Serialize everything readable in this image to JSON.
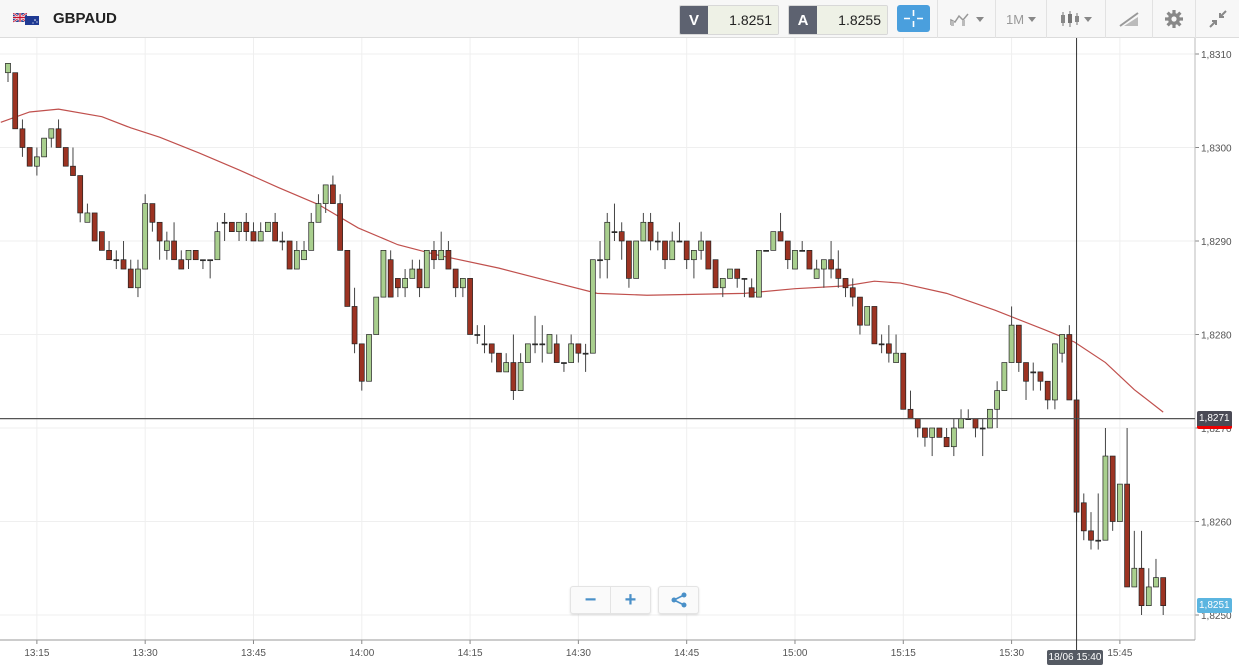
{
  "header": {
    "symbol": "GBPAUD",
    "flag_icon": "gb-au-flag-icon",
    "sell_label": "V",
    "sell_price": "1.8251",
    "buy_label": "A",
    "buy_price": "1.8255",
    "timeframe": "1M",
    "icons": [
      "crosshair-icon",
      "chart-type-icon",
      "timeframe-dropdown",
      "candlestick-icon",
      "drawing-tool-icon",
      "gear-icon",
      "collapse-icon"
    ]
  },
  "zoom_controls": {
    "zoom_out": "−",
    "zoom_in": "+",
    "share_icon": "share-icon"
  },
  "colors": {
    "up": "#a9cf8e",
    "down": "#9c3322",
    "ma": "#c0504d",
    "accent": "#4a9fdd",
    "price_tag": "#4a4a55",
    "bid_tag": "#5bb5e0"
  },
  "chart_data": {
    "type": "candlestick",
    "symbol": "GBPAUD",
    "interval": "1M",
    "start_time": "13:11",
    "ylim": [
      1.8245,
      1.8316
    ],
    "y_ticks": [
      1.825,
      1.826,
      1.827,
      1.828,
      1.829,
      1.83,
      1.831
    ],
    "y_tick_labels": [
      "1,8250",
      "1,8260",
      "1,8270",
      "1,8280",
      "1,8290",
      "1,8300",
      "1,8310"
    ],
    "x_tick_labels": [
      "13:15",
      "13:30",
      "13:45",
      "14:00",
      "14:15",
      "14:30",
      "14:45",
      "15:00",
      "15:15",
      "15:30",
      "15:45"
    ],
    "x_tick_minutes": [
      4,
      19,
      34,
      49,
      64,
      79,
      94,
      109,
      124,
      139,
      154
    ],
    "grid": true,
    "current_price": 1.8271,
    "current_price_label": "1,8271",
    "bid_price": 1.8251,
    "bid_label": "1,8251",
    "crosshair_index": 148,
    "crosshair_label": "18/06 15:40",
    "candles_ohlc": [
      [
        1.8308,
        1.8309,
        1.8307,
        1.8309
      ],
      [
        1.8308,
        1.8308,
        1.8302,
        1.8302
      ],
      [
        1.8302,
        1.8303,
        1.8299,
        1.83
      ],
      [
        1.83,
        1.83,
        1.8298,
        1.8298
      ],
      [
        1.8298,
        1.83,
        1.8297,
        1.8299
      ],
      [
        1.8299,
        1.8301,
        1.8299,
        1.8301
      ],
      [
        1.8301,
        1.8302,
        1.83,
        1.8302
      ],
      [
        1.8302,
        1.8303,
        1.83,
        1.83
      ],
      [
        1.83,
        1.83,
        1.8298,
        1.8298
      ],
      [
        1.8298,
        1.83,
        1.8297,
        1.8297
      ],
      [
        1.8297,
        1.8297,
        1.8292,
        1.8293
      ],
      [
        1.8292,
        1.8294,
        1.8292,
        1.8293
      ],
      [
        1.8293,
        1.8293,
        1.829,
        1.829
      ],
      [
        1.8291,
        1.8291,
        1.8289,
        1.8289
      ],
      [
        1.8289,
        1.829,
        1.8288,
        1.8288
      ],
      [
        1.8288,
        1.8289,
        1.8287,
        1.8288
      ],
      [
        1.8288,
        1.829,
        1.8287,
        1.8287
      ],
      [
        1.8287,
        1.8288,
        1.8285,
        1.8285
      ],
      [
        1.8285,
        1.8288,
        1.8284,
        1.8287
      ],
      [
        1.8287,
        1.8295,
        1.8287,
        1.8294
      ],
      [
        1.8294,
        1.8294,
        1.8291,
        1.8292
      ],
      [
        1.8292,
        1.8292,
        1.8288,
        1.829
      ],
      [
        1.8289,
        1.8291,
        1.8288,
        1.829
      ],
      [
        1.829,
        1.8292,
        1.8288,
        1.8288
      ],
      [
        1.8288,
        1.8289,
        1.8287,
        1.8287
      ],
      [
        1.8288,
        1.8289,
        1.8287,
        1.8289
      ],
      [
        1.8289,
        1.8289,
        1.8288,
        1.8288
      ],
      [
        1.8288,
        1.8288,
        1.8287,
        1.8288
      ],
      [
        1.8288,
        1.8288,
        1.8286,
        1.8288
      ],
      [
        1.8288,
        1.8292,
        1.8288,
        1.8291
      ],
      [
        1.8292,
        1.8293,
        1.829,
        1.8292
      ],
      [
        1.8292,
        1.8292,
        1.8291,
        1.8291
      ],
      [
        1.8291,
        1.8292,
        1.829,
        1.8292
      ],
      [
        1.8292,
        1.8293,
        1.829,
        1.8291
      ],
      [
        1.8291,
        1.8292,
        1.829,
        1.829
      ],
      [
        1.829,
        1.8292,
        1.829,
        1.8291
      ],
      [
        1.8291,
        1.8292,
        1.8291,
        1.8292
      ],
      [
        1.8292,
        1.8293,
        1.829,
        1.829
      ],
      [
        1.829,
        1.8291,
        1.8289,
        1.829
      ],
      [
        1.829,
        1.829,
        1.8287,
        1.8287
      ],
      [
        1.8287,
        1.829,
        1.8287,
        1.8289
      ],
      [
        1.8288,
        1.829,
        1.8288,
        1.8289
      ],
      [
        1.8289,
        1.8293,
        1.8289,
        1.8292
      ],
      [
        1.8292,
        1.8295,
        1.8292,
        1.8294
      ],
      [
        1.8294,
        1.8296,
        1.8293,
        1.8296
      ],
      [
        1.8296,
        1.8297,
        1.8294,
        1.8294
      ],
      [
        1.8294,
        1.8295,
        1.8289,
        1.8289
      ],
      [
        1.8289,
        1.8289,
        1.8283,
        1.8283
      ],
      [
        1.8283,
        1.8285,
        1.8278,
        1.8279
      ],
      [
        1.8279,
        1.8279,
        1.8274,
        1.8275
      ],
      [
        1.8275,
        1.828,
        1.8275,
        1.828
      ],
      [
        1.828,
        1.8284,
        1.828,
        1.8284
      ],
      [
        1.8284,
        1.8289,
        1.8284,
        1.8289
      ],
      [
        1.8288,
        1.8289,
        1.8284,
        1.8284
      ],
      [
        1.8286,
        1.8286,
        1.8284,
        1.8285
      ],
      [
        1.8285,
        1.8287,
        1.8284,
        1.8286
      ],
      [
        1.8286,
        1.8288,
        1.8286,
        1.8287
      ],
      [
        1.8287,
        1.8288,
        1.8284,
        1.8285
      ],
      [
        1.8285,
        1.8289,
        1.8285,
        1.8289
      ],
      [
        1.8289,
        1.829,
        1.8287,
        1.8288
      ],
      [
        1.8288,
        1.8291,
        1.8288,
        1.8289
      ],
      [
        1.8289,
        1.829,
        1.8287,
        1.8287
      ],
      [
        1.8287,
        1.8287,
        1.8284,
        1.8285
      ],
      [
        1.8285,
        1.8286,
        1.8284,
        1.8286
      ],
      [
        1.8286,
        1.8286,
        1.828,
        1.828
      ],
      [
        1.828,
        1.8281,
        1.8279,
        1.828
      ],
      [
        1.8279,
        1.8281,
        1.8278,
        1.8279
      ],
      [
        1.8279,
        1.8279,
        1.8277,
        1.8278
      ],
      [
        1.8278,
        1.8278,
        1.8276,
        1.8276
      ],
      [
        1.8276,
        1.8278,
        1.8276,
        1.8277
      ],
      [
        1.8277,
        1.828,
        1.8273,
        1.8274
      ],
      [
        1.8274,
        1.8278,
        1.8274,
        1.8277
      ],
      [
        1.8277,
        1.8279,
        1.8277,
        1.8279
      ],
      [
        1.8279,
        1.8282,
        1.8278,
        1.8279
      ],
      [
        1.8279,
        1.8281,
        1.8277,
        1.8279
      ],
      [
        1.8278,
        1.828,
        1.8278,
        1.828
      ],
      [
        1.8279,
        1.828,
        1.8277,
        1.8277
      ],
      [
        1.8277,
        1.8277,
        1.8276,
        1.8277
      ],
      [
        1.8277,
        1.828,
        1.8277,
        1.8279
      ],
      [
        1.8279,
        1.8279,
        1.8277,
        1.8278
      ],
      [
        1.8278,
        1.8279,
        1.8276,
        1.8278
      ],
      [
        1.8278,
        1.8288,
        1.8278,
        1.8288
      ],
      [
        1.8288,
        1.829,
        1.8286,
        1.8288
      ],
      [
        1.8288,
        1.8293,
        1.8286,
        1.8292
      ],
      [
        1.8291,
        1.8294,
        1.829,
        1.8291
      ],
      [
        1.8291,
        1.8292,
        1.8288,
        1.829
      ],
      [
        1.829,
        1.829,
        1.8285,
        1.8286
      ],
      [
        1.8286,
        1.829,
        1.8286,
        1.829
      ],
      [
        1.829,
        1.8293,
        1.829,
        1.8292
      ],
      [
        1.8292,
        1.8293,
        1.8289,
        1.829
      ],
      [
        1.829,
        1.8291,
        1.8289,
        1.829
      ],
      [
        1.829,
        1.829,
        1.8287,
        1.8288
      ],
      [
        1.8288,
        1.8291,
        1.8288,
        1.829
      ],
      [
        1.829,
        1.8292,
        1.829,
        1.829
      ],
      [
        1.829,
        1.829,
        1.8287,
        1.8288
      ],
      [
        1.8288,
        1.8289,
        1.8286,
        1.8289
      ],
      [
        1.8289,
        1.8291,
        1.8288,
        1.829
      ],
      [
        1.829,
        1.829,
        1.8287,
        1.8287
      ],
      [
        1.8288,
        1.8288,
        1.8285,
        1.8285
      ],
      [
        1.8285,
        1.8286,
        1.8284,
        1.8286
      ],
      [
        1.8286,
        1.8287,
        1.8286,
        1.8287
      ],
      [
        1.8287,
        1.8287,
        1.8285,
        1.8286
      ],
      [
        1.8286,
        1.8286,
        1.8284,
        1.8286
      ],
      [
        1.8285,
        1.8286,
        1.8284,
        1.8284
      ],
      [
        1.8284,
        1.8289,
        1.8284,
        1.8289
      ],
      [
        1.8289,
        1.8289,
        1.8289,
        1.8289
      ],
      [
        1.8289,
        1.8291,
        1.8289,
        1.8291
      ],
      [
        1.8291,
        1.8293,
        1.829,
        1.829
      ],
      [
        1.829,
        1.829,
        1.8287,
        1.8288
      ],
      [
        1.8287,
        1.8289,
        1.8287,
        1.8289
      ],
      [
        1.8289,
        1.829,
        1.8289,
        1.8289
      ],
      [
        1.8289,
        1.8289,
        1.8287,
        1.8287
      ],
      [
        1.8286,
        1.8288,
        1.8286,
        1.8287
      ],
      [
        1.8287,
        1.8288,
        1.8285,
        1.8288
      ],
      [
        1.8288,
        1.829,
        1.8286,
        1.8287
      ],
      [
        1.8287,
        1.8289,
        1.8285,
        1.8286
      ],
      [
        1.8286,
        1.8286,
        1.8284,
        1.8285
      ],
      [
        1.8285,
        1.8286,
        1.8283,
        1.8284
      ],
      [
        1.8284,
        1.8284,
        1.828,
        1.8281
      ],
      [
        1.8281,
        1.8283,
        1.8281,
        1.8283
      ],
      [
        1.8283,
        1.8283,
        1.8279,
        1.8279
      ],
      [
        1.8279,
        1.828,
        1.8278,
        1.8279
      ],
      [
        1.8279,
        1.8281,
        1.8277,
        1.8278
      ],
      [
        1.8277,
        1.828,
        1.8277,
        1.8278
      ],
      [
        1.8278,
        1.8278,
        1.8272,
        1.8272
      ],
      [
        1.8272,
        1.8274,
        1.8271,
        1.8271
      ],
      [
        1.8271,
        1.8271,
        1.8269,
        1.827
      ],
      [
        1.827,
        1.827,
        1.8268,
        1.8269
      ],
      [
        1.8269,
        1.827,
        1.8267,
        1.827
      ],
      [
        1.827,
        1.827,
        1.8269,
        1.8269
      ],
      [
        1.8269,
        1.827,
        1.8268,
        1.8268
      ],
      [
        1.8268,
        1.8271,
        1.8267,
        1.827
      ],
      [
        1.827,
        1.8272,
        1.827,
        1.8271
      ],
      [
        1.8271,
        1.8272,
        1.8271,
        1.8271
      ],
      [
        1.8271,
        1.8271,
        1.8269,
        1.827
      ],
      [
        1.827,
        1.8271,
        1.8267,
        1.827
      ],
      [
        1.827,
        1.8272,
        1.827,
        1.8272
      ],
      [
        1.8272,
        1.8275,
        1.827,
        1.8274
      ],
      [
        1.8274,
        1.8277,
        1.8274,
        1.8277
      ],
      [
        1.8277,
        1.8283,
        1.8277,
        1.8281
      ],
      [
        1.8281,
        1.8281,
        1.8276,
        1.8277
      ],
      [
        1.8277,
        1.8277,
        1.8273,
        1.8275
      ],
      [
        1.8276,
        1.8277,
        1.8274,
        1.8276
      ],
      [
        1.8276,
        1.8276,
        1.8274,
        1.8275
      ],
      [
        1.8275,
        1.8275,
        1.8272,
        1.8273
      ],
      [
        1.8273,
        1.8279,
        1.8272,
        1.8279
      ],
      [
        1.8278,
        1.828,
        1.8277,
        1.828
      ],
      [
        1.828,
        1.8281,
        1.8273,
        1.8273
      ],
      [
        1.8273,
        1.8274,
        1.826,
        1.8261
      ],
      [
        1.8262,
        1.8263,
        1.8258,
        1.8259
      ],
      [
        1.8259,
        1.8261,
        1.8257,
        1.8258
      ],
      [
        1.8258,
        1.8263,
        1.8257,
        1.8258
      ],
      [
        1.8258,
        1.827,
        1.8258,
        1.8267
      ],
      [
        1.8267,
        1.8267,
        1.8259,
        1.826
      ],
      [
        1.826,
        1.8264,
        1.826,
        1.8264
      ],
      [
        1.8264,
        1.827,
        1.8253,
        1.8253
      ],
      [
        1.8253,
        1.8259,
        1.8253,
        1.8255
      ],
      [
        1.8255,
        1.8259,
        1.825,
        1.8251
      ],
      [
        1.8251,
        1.8255,
        1.8251,
        1.8253
      ],
      [
        1.8253,
        1.8256,
        1.8253,
        1.8254
      ],
      [
        1.8254,
        1.8254,
        1.825,
        1.8251
      ]
    ],
    "moving_average": [
      [
        -1,
        1.83027
      ],
      [
        3,
        1.83038
      ],
      [
        7,
        1.83041
      ],
      [
        13,
        1.83033
      ],
      [
        17,
        1.83021
      ],
      [
        21,
        1.83011
      ],
      [
        26.5,
        1.82994
      ],
      [
        32,
        1.82976
      ],
      [
        37.5,
        1.82957
      ],
      [
        43,
        1.82939
      ],
      [
        48.5,
        1.82914
      ],
      [
        54,
        1.82896
      ],
      [
        59.5,
        1.82885
      ],
      [
        68,
        1.82871
      ],
      [
        75,
        1.82857
      ],
      [
        81.6,
        1.82844
      ],
      [
        88.5,
        1.82842
      ],
      [
        102,
        1.82844
      ],
      [
        109,
        1.82849
      ],
      [
        116,
        1.82852
      ],
      [
        120,
        1.82857
      ],
      [
        123.6,
        1.82855
      ],
      [
        130,
        1.82844
      ],
      [
        136.7,
        1.82826
      ],
      [
        143.6,
        1.82805
      ],
      [
        147.7,
        1.82792
      ],
      [
        152,
        1.8277
      ],
      [
        156,
        1.82741
      ],
      [
        160,
        1.82717
      ]
    ]
  }
}
